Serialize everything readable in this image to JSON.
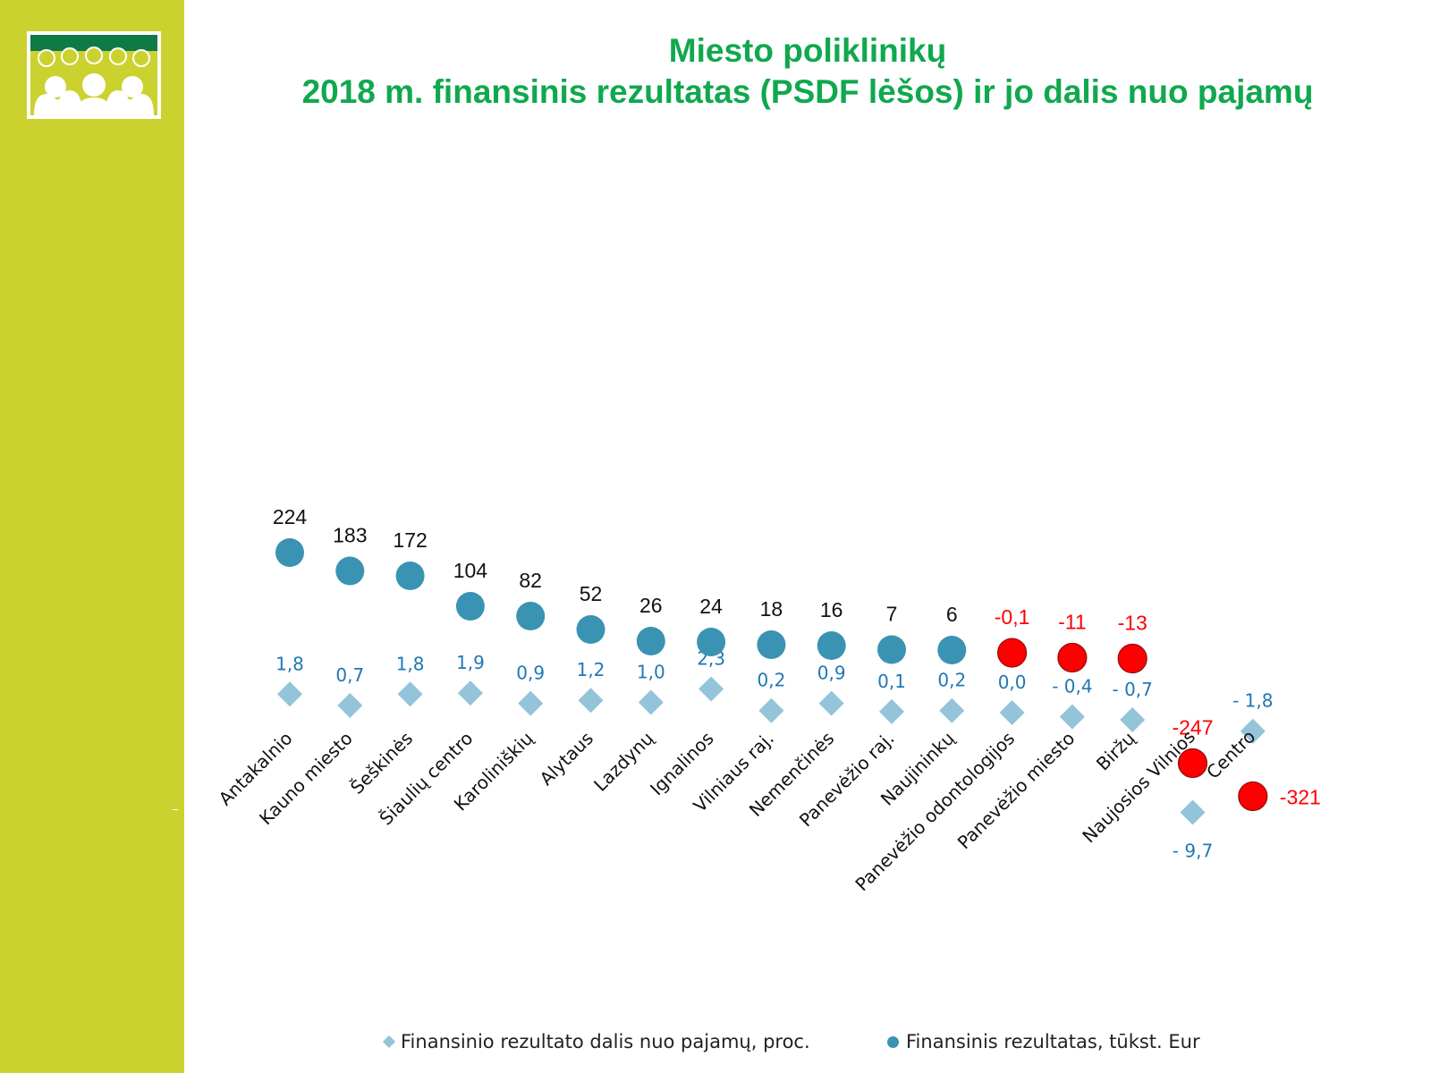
{
  "title": {
    "line1": "Miesto poliklinikų",
    "line2": "2018 m. finansinis rezultatas (PSDF lėšos) ir jo dalis nuo pajamų"
  },
  "colors": {
    "panel": "#cbd22f",
    "title": "#10a84e",
    "circle_positive": "#3a93b2",
    "circle_negative": "#ff0000",
    "diamond": "#93c4d9",
    "share_label": "#1f78b4",
    "result_label_negative": "#ff0000"
  },
  "icons": {
    "logo": "group-of-people-logo-icon"
  },
  "chart_data": {
    "type": "scatter",
    "categories": [
      "Antakalnio",
      "Kauno miesto",
      "Šeškinės",
      "Šiaulių centro",
      "Karoliniškių",
      "Alytaus",
      "Lazdynų",
      "Ignalinos",
      "Vilniaus raj.",
      "Nemenčinės",
      "Panevėžio raj.",
      "Naujininkų",
      "Panevėžio odontologijos",
      "Panevėžio miesto",
      "Biržų",
      "Naujosios Vilnios",
      "Centro"
    ],
    "series": [
      {
        "name": "Finansinis rezultatas, tūkst. Eur",
        "marker": "circle",
        "values": [
          224,
          183,
          172,
          104,
          82,
          52,
          26,
          24,
          18,
          16,
          7,
          6,
          -0.1,
          -11,
          -13,
          -247,
          -321
        ],
        "labels": [
          "224",
          "183",
          "172",
          "104",
          "82",
          "52",
          "26",
          "24",
          "18",
          "16",
          "7",
          "6",
          "-0,1",
          "-11",
          "-13",
          "-247",
          "-321"
        ]
      },
      {
        "name": "Finansinio rezultato dalis nuo pajamų, proc.",
        "marker": "diamond",
        "values": [
          1.8,
          0.7,
          1.8,
          1.9,
          0.9,
          1.2,
          1.0,
          2.3,
          0.2,
          0.9,
          0.1,
          0.2,
          0.0,
          -0.4,
          -0.7,
          -9.7,
          -1.8
        ],
        "labels": [
          "1,8",
          "0,7",
          "1,8",
          "1,9",
          "0,9",
          "1,2",
          "1,0",
          "2,3",
          "0,2",
          "0,9",
          "0,1",
          "0,2",
          "0,0",
          "- 0,4",
          "- 0,7",
          "- 9,7",
          "- 1,8"
        ]
      }
    ],
    "legend_position": "bottom",
    "grid": false
  }
}
